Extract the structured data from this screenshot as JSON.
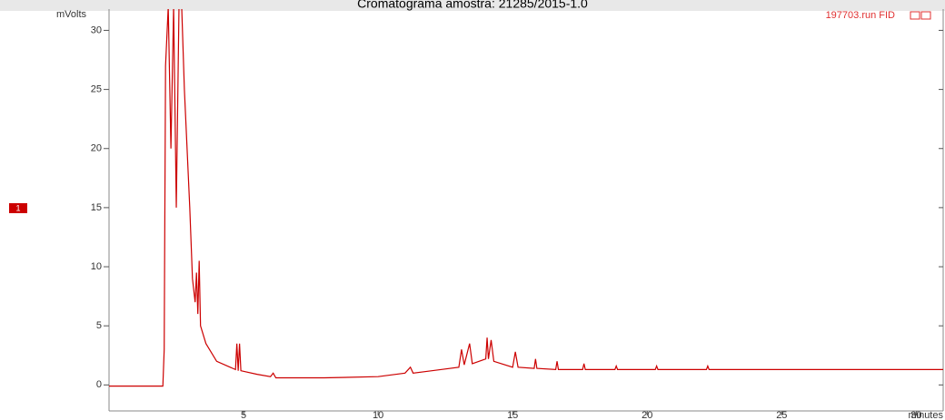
{
  "chart_data": {
    "type": "line",
    "title": "Cromatograma amostra: 21285/2015-1.0",
    "y_label": "mVolts",
    "x_label": "minutes",
    "annotation": "197703.run FID",
    "x": [
      0,
      2.0,
      2.05,
      2.1,
      2.2,
      2.3,
      2.4,
      2.5,
      2.6,
      2.7,
      2.8,
      3.0,
      3.1,
      3.2,
      3.25,
      3.3,
      3.35,
      3.4,
      3.6,
      4.0,
      4.5,
      4.7,
      4.75,
      4.8,
      4.85,
      4.9,
      5.5,
      6.0,
      6.1,
      6.2,
      8.0,
      10.0,
      11.0,
      11.2,
      11.3,
      12.0,
      13.0,
      13.1,
      13.2,
      13.4,
      13.5,
      14.0,
      14.05,
      14.1,
      14.2,
      14.3,
      15.0,
      15.1,
      15.2,
      15.8,
      15.85,
      15.9,
      16.6,
      16.65,
      16.7,
      17.6,
      17.65,
      17.7,
      18.8,
      18.85,
      18.9,
      20.3,
      20.35,
      20.4,
      22.2,
      22.25,
      22.3,
      25.0,
      31.0
    ],
    "series": [
      {
        "name": "1",
        "color": "#cc0000",
        "values": [
          -0.1,
          -0.1,
          3,
          27,
          32,
          20,
          32,
          15,
          32,
          32,
          25,
          15,
          9,
          7,
          9.5,
          6,
          10.5,
          5,
          3.5,
          2,
          1.5,
          1.3,
          3.5,
          1.2,
          3.5,
          1.2,
          0.9,
          0.7,
          1,
          0.6,
          0.6,
          0.7,
          1.0,
          1.5,
          1.0,
          1.2,
          1.5,
          3,
          1.7,
          3.5,
          1.8,
          2.2,
          4,
          2.2,
          3.8,
          2.0,
          1.5,
          2.8,
          1.5,
          1.4,
          2.2,
          1.4,
          1.3,
          2.0,
          1.3,
          1.3,
          1.8,
          1.3,
          1.3,
          1.6,
          1.3,
          1.3,
          1.6,
          1.3,
          1.3,
          1.6,
          1.3,
          1.3,
          1.3
        ]
      }
    ],
    "xlim": [
      0,
      31
    ],
    "xticks": [
      5,
      10,
      15,
      20,
      25,
      30
    ],
    "ylim": [
      -2.2,
      31.8
    ],
    "yticks": [
      0,
      5,
      10,
      15,
      20,
      25,
      30
    ]
  }
}
